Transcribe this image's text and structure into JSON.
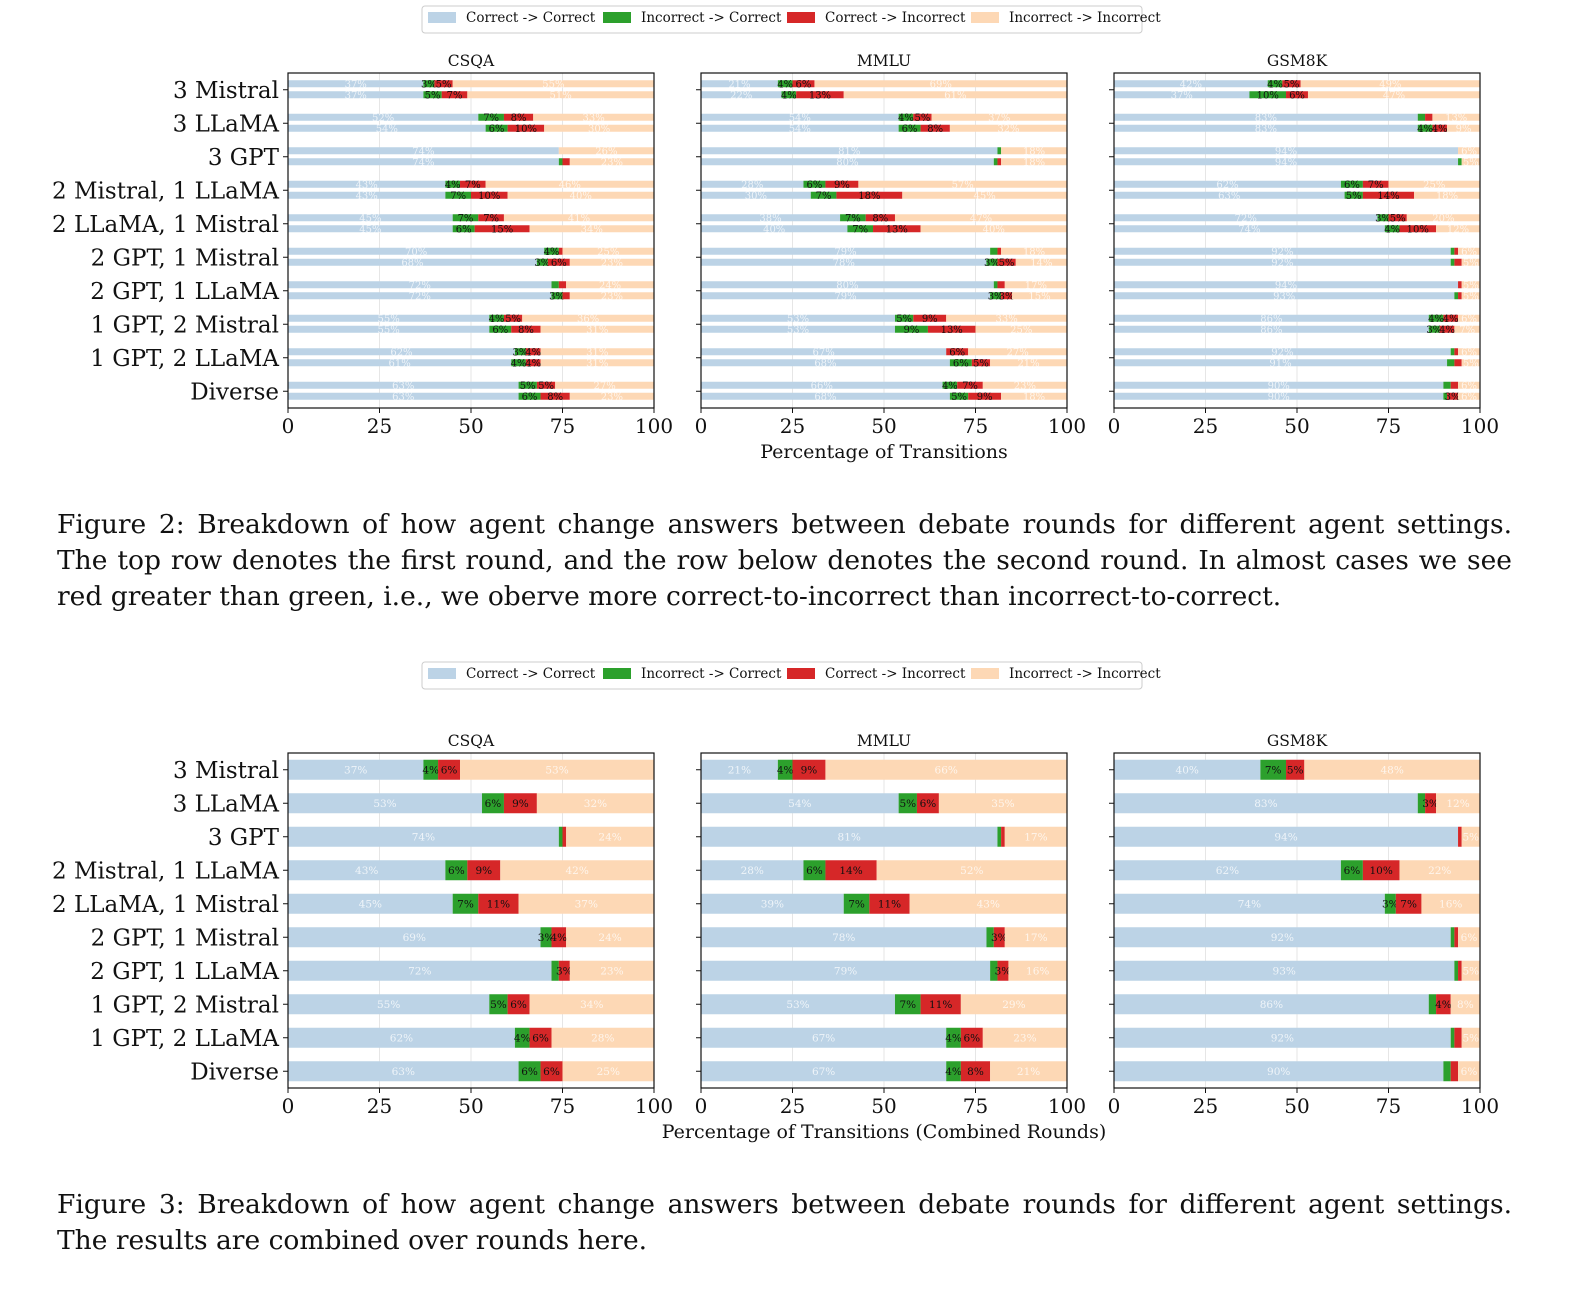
{
  "legend": {
    "entries": [
      "Correct -> Correct",
      "Incorrect -> Correct",
      "Correct -> Incorrect",
      "Incorrect -> Incorrect"
    ],
    "colors": [
      "#bcd3e6",
      "#2ca02c",
      "#d62728",
      "#fdd8b5"
    ]
  },
  "settings": [
    "3 Mistral",
    "3 LLaMA",
    "3 GPT",
    "2 Mistral, 1 LLaMA",
    "2 LLaMA, 1 Mistral",
    "2 GPT, 1 Mistral",
    "2 GPT, 1 LLaMA",
    "1 GPT, 2 Mistral",
    "1 GPT, 2 LLaMA",
    "Diverse"
  ],
  "chart_data": [
    {
      "type": "bar",
      "figure": "Figure 2",
      "orientation": "horizontal-stacked",
      "xlabel": "Percentage of Transitions",
      "xlim": [
        0,
        100
      ],
      "xticks": [
        0,
        25,
        50,
        75,
        100
      ],
      "categories": [
        "3 Mistral",
        "3 LLaMA",
        "3 GPT",
        "2 Mistral, 1 LLaMA",
        "2 LLaMA, 1 Mistral",
        "2 GPT, 1 Mistral",
        "2 GPT, 1 LLaMA",
        "1 GPT, 2 Mistral",
        "1 GPT, 2 LLaMA",
        "Diverse"
      ],
      "round_rows": [
        "first round",
        "second round"
      ],
      "panels": [
        {
          "title": "CSQA",
          "round1": [
            [
              37,
              3,
              5,
              55
            ],
            [
              52,
              7,
              8,
              33
            ],
            [
              74,
              0,
              0,
              26
            ],
            [
              43,
              4,
              7,
              46
            ],
            [
              45,
              7,
              7,
              41
            ],
            [
              70,
              4,
              1,
              25
            ],
            [
              72,
              2,
              2,
              24
            ],
            [
              55,
              4,
              5,
              36
            ],
            [
              62,
              3,
              4,
              31
            ],
            [
              63,
              5,
              5,
              27
            ]
          ],
          "round2": [
            [
              37,
              5,
              7,
              51
            ],
            [
              54,
              6,
              10,
              30
            ],
            [
              74,
              1,
              2,
              23
            ],
            [
              43,
              7,
              10,
              40
            ],
            [
              45,
              6,
              15,
              34
            ],
            [
              68,
              3,
              6,
              23
            ],
            [
              72,
              3,
              2,
              23
            ],
            [
              55,
              6,
              8,
              31
            ],
            [
              61,
              4,
              4,
              31
            ],
            [
              63,
              6,
              8,
              23
            ]
          ]
        },
        {
          "title": "MMLU",
          "round1": [
            [
              21,
              4,
              6,
              69
            ],
            [
              54,
              4,
              5,
              37
            ],
            [
              81,
              1,
              0,
              18
            ],
            [
              28,
              6,
              9,
              57
            ],
            [
              38,
              7,
              8,
              47
            ],
            [
              79,
              2,
              1,
              18
            ],
            [
              80,
              1,
              2,
              17
            ],
            [
              53,
              5,
              9,
              33
            ],
            [
              67,
              0,
              6,
              27
            ],
            [
              66,
              4,
              7,
              23
            ]
          ],
          "round2": [
            [
              22,
              4,
              13,
              61
            ],
            [
              54,
              6,
              8,
              32
            ],
            [
              80,
              1,
              1,
              18
            ],
            [
              30,
              7,
              18,
              45
            ],
            [
              40,
              7,
              13,
              40
            ],
            [
              78,
              3,
              5,
              14
            ],
            [
              79,
              3,
              3,
              15
            ],
            [
              53,
              9,
              13,
              25
            ],
            [
              68,
              6,
              5,
              21
            ],
            [
              68,
              5,
              9,
              18
            ]
          ]
        },
        {
          "title": "GSM8K",
          "round1": [
            [
              42,
              4,
              5,
              49
            ],
            [
              83,
              2,
              2,
              13
            ],
            [
              94,
              0,
              0,
              6
            ],
            [
              62,
              6,
              7,
              25
            ],
            [
              72,
              3,
              5,
              20
            ],
            [
              92,
              1,
              1,
              6
            ],
            [
              94,
              0,
              1,
              5
            ],
            [
              86,
              4,
              4,
              6
            ],
            [
              92,
              1,
              1,
              6
            ],
            [
              90,
              2,
              2,
              6
            ]
          ],
          "round2": [
            [
              37,
              10,
              6,
              47
            ],
            [
              83,
              4,
              4,
              9
            ],
            [
              94,
              1,
              0,
              5
            ],
            [
              63,
              5,
              14,
              18
            ],
            [
              74,
              4,
              10,
              12
            ],
            [
              92,
              1,
              2,
              5
            ],
            [
              93,
              1,
              1,
              5
            ],
            [
              86,
              3,
              4,
              7
            ],
            [
              91,
              2,
              2,
              5
            ],
            [
              90,
              1,
              3,
              6
            ]
          ]
        }
      ]
    },
    {
      "type": "bar",
      "figure": "Figure 3",
      "orientation": "horizontal-stacked",
      "xlabel": "Percentage of Transitions (Combined Rounds)",
      "xlim": [
        0,
        100
      ],
      "xticks": [
        0,
        25,
        50,
        75,
        100
      ],
      "categories": [
        "3 Mistral",
        "3 LLaMA",
        "3 GPT",
        "2 Mistral, 1 LLaMA",
        "2 LLaMA, 1 Mistral",
        "2 GPT, 1 Mistral",
        "2 GPT, 1 LLaMA",
        "1 GPT, 2 Mistral",
        "1 GPT, 2 LLaMA",
        "Diverse"
      ],
      "panels": [
        {
          "title": "CSQA",
          "combined": [
            [
              37,
              4,
              6,
              53
            ],
            [
              53,
              6,
              9,
              32
            ],
            [
              74,
              1,
              1,
              24
            ],
            [
              43,
              6,
              9,
              42
            ],
            [
              45,
              7,
              11,
              37
            ],
            [
              69,
              3,
              4,
              24
            ],
            [
              72,
              2,
              3,
              23
            ],
            [
              55,
              5,
              6,
              34
            ],
            [
              62,
              4,
              6,
              28
            ],
            [
              63,
              6,
              6,
              25
            ]
          ]
        },
        {
          "title": "MMLU",
          "combined": [
            [
              21,
              4,
              9,
              66
            ],
            [
              54,
              5,
              6,
              35
            ],
            [
              81,
              1,
              1,
              17
            ],
            [
              28,
              6,
              14,
              52
            ],
            [
              39,
              7,
              11,
              43
            ],
            [
              78,
              2,
              3,
              17
            ],
            [
              79,
              2,
              3,
              16
            ],
            [
              53,
              7,
              11,
              29
            ],
            [
              67,
              4,
              6,
              23
            ],
            [
              67,
              4,
              8,
              21
            ]
          ]
        },
        {
          "title": "GSM8K",
          "combined": [
            [
              40,
              7,
              5,
              48
            ],
            [
              83,
              2,
              3,
              12
            ],
            [
              94,
              0,
              1,
              5
            ],
            [
              62,
              6,
              10,
              22
            ],
            [
              74,
              3,
              7,
              16
            ],
            [
              92,
              1,
              1,
              6
            ],
            [
              93,
              1,
              1,
              5
            ],
            [
              86,
              2,
              4,
              8
            ],
            [
              92,
              1,
              2,
              5
            ],
            [
              90,
              2,
              2,
              6
            ]
          ]
        }
      ]
    }
  ],
  "captions": {
    "figure2": "Figure 2: Breakdown of how agent change answers between debate rounds for different agent settings. The top row denotes the first round, and the row below denotes the second round. In almost cases we see red greater than green, i.e., we oberve more correct-to-incorrect than incorrect-to-correct.",
    "figure3": "Figure 3: Breakdown of how agent change answers between debate rounds for different agent settings. The results are combined over rounds here."
  }
}
